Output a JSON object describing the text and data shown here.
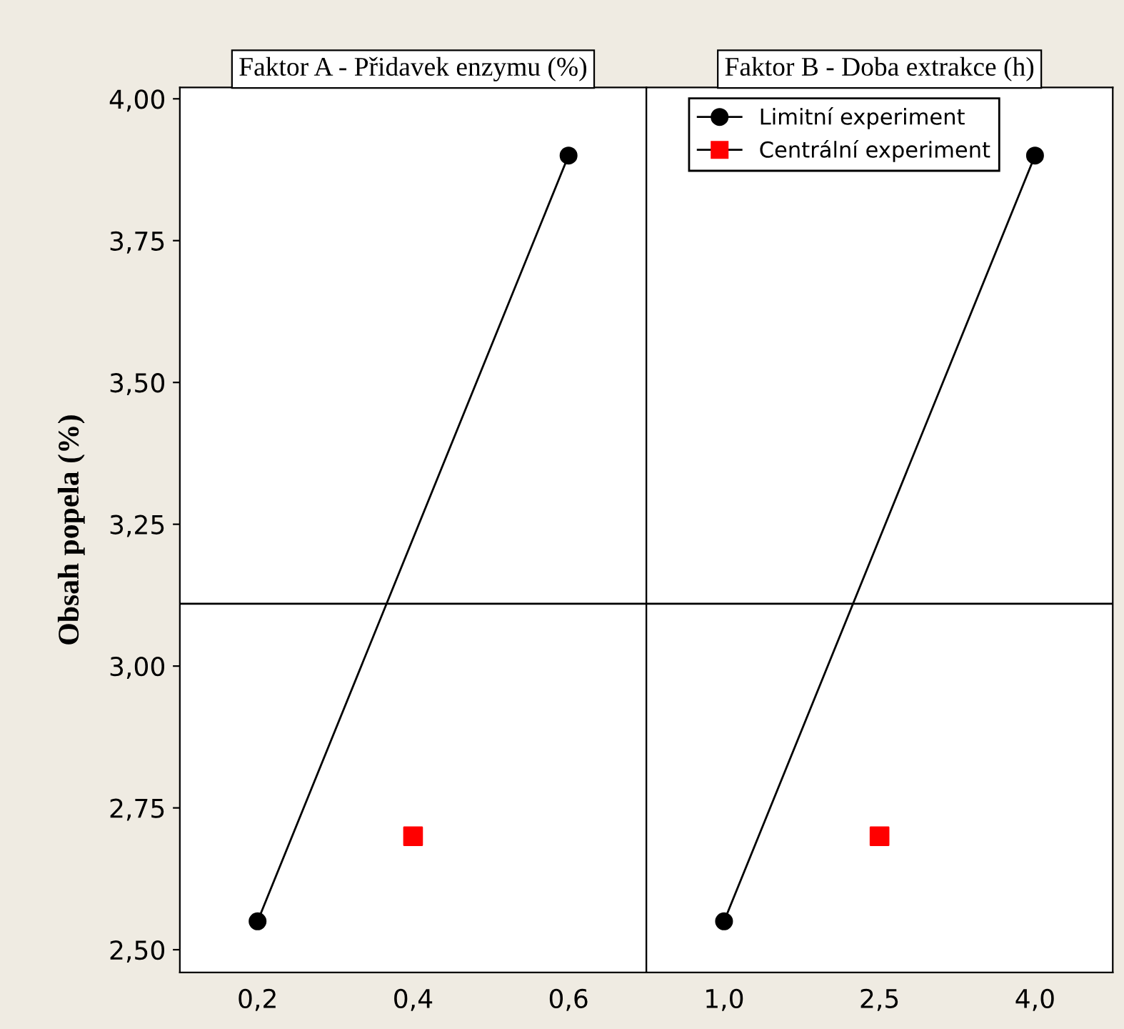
{
  "chart_data": [
    {
      "type": "line",
      "title": "Faktor A - Přidavek enzymu (%)",
      "ylabel": "Obsah popela (%)",
      "categories": [
        "0,2",
        "0,4",
        "0,6"
      ],
      "ylim": [
        2.46,
        4.02
      ],
      "yticks": [
        {
          "value": 2.5,
          "label": "2,50"
        },
        {
          "value": 2.75,
          "label": "2,75"
        },
        {
          "value": 3.0,
          "label": "3,00"
        },
        {
          "value": 3.25,
          "label": "3,25"
        },
        {
          "value": 3.5,
          "label": "3,50"
        },
        {
          "value": 3.75,
          "label": "3,75"
        },
        {
          "value": 4.0,
          "label": "4,00"
        }
      ],
      "grid": false,
      "legend": "top right",
      "ref_lines": [
        {
          "axis": "y",
          "value": 3.11,
          "label": null,
          "color": "#000000"
        }
      ],
      "series": [
        {
          "name": "Limitní experiment",
          "color": "#000000",
          "marker": "circle",
          "values": [
            2.55,
            null,
            3.9
          ]
        },
        {
          "name": "Centrální experiment",
          "type": "scatter",
          "color": "#ff0000",
          "marker": "square",
          "values": [
            null,
            2.7,
            null
          ]
        }
      ]
    },
    {
      "type": "line",
      "title": "Faktor B - Doba extrakce (h)",
      "categories": [
        "1,0",
        "2,5",
        "4,0"
      ],
      "ylim": [
        2.46,
        4.02
      ],
      "tick_labels": "x",
      "grid": false,
      "ref_lines": [
        {
          "axis": "y",
          "value": 3.11,
          "label": null,
          "color": "#000000"
        }
      ],
      "series": [
        {
          "color": "#000000",
          "marker": "circle",
          "values": [
            2.55,
            null,
            3.9
          ]
        },
        {
          "type": "scatter",
          "color": "#ff0000",
          "marker": "square",
          "values": [
            null,
            2.7,
            null
          ]
        }
      ]
    }
  ]
}
